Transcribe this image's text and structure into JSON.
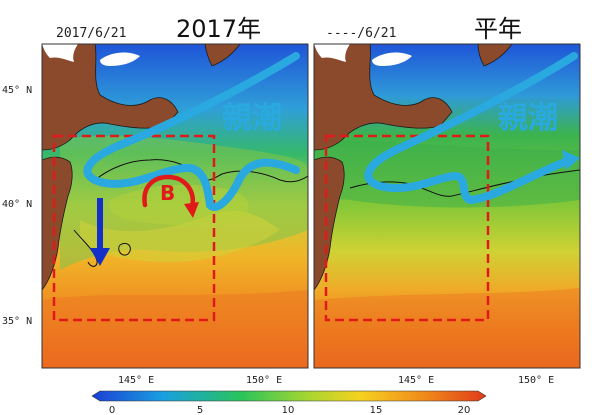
{
  "panels": [
    {
      "date": "2017/6/21",
      "title": "2017年",
      "current_label": "親潮",
      "eddy_label": "B"
    },
    {
      "date": "----/6/21",
      "title": "平年",
      "current_label": "親潮"
    }
  ],
  "axes": {
    "lat_ticks": [
      "45° N",
      "40° N",
      "35° N"
    ],
    "lon_ticks_left": [
      "145° E",
      "150° E"
    ],
    "lon_ticks_right": [
      "145° E",
      "150° E"
    ]
  },
  "colorbar": {
    "ticks": [
      "0",
      "5",
      "10",
      "15",
      "20"
    ],
    "colors": [
      "#1a3fd6",
      "#1a9fe0",
      "#29c45a",
      "#a8d630",
      "#f5d21f",
      "#f08c1a",
      "#e03a1a"
    ]
  },
  "colors": {
    "current_arrow": "#2aa9e0",
    "southward_arrow": "#1530c8",
    "eddy": "#e01a1a",
    "region_box": "#e01a1a",
    "land": "#8b4a2b"
  }
}
